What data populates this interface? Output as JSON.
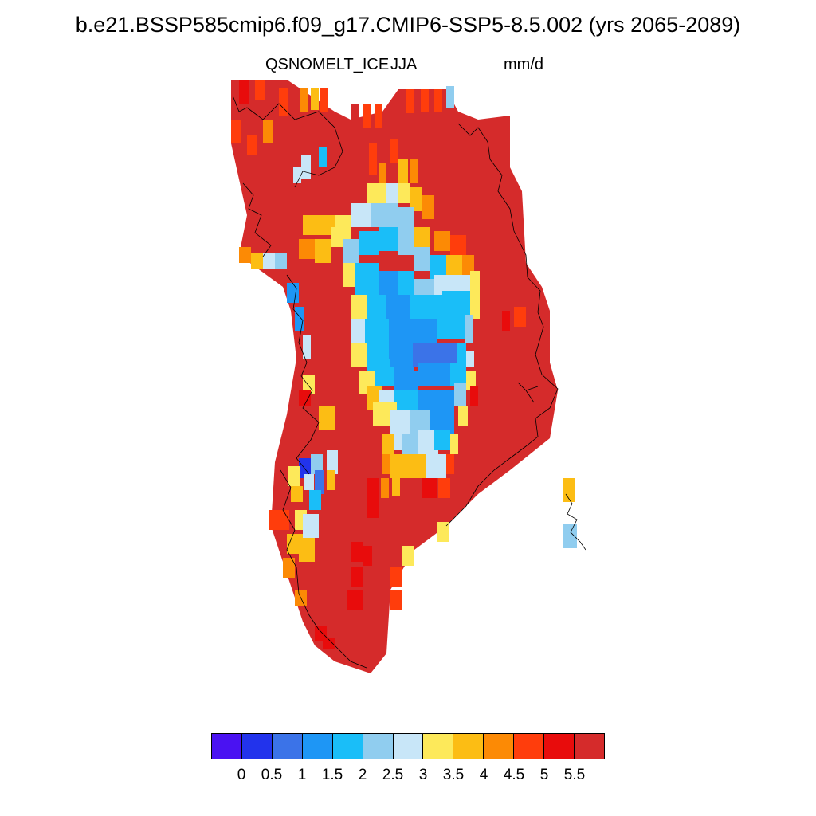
{
  "title": "b.e21.BSSP585cmip6.f09_g17.CMIP6-SSP5-8.5.002 (yrs 2065-2089)",
  "subtitle_left": "QSNOMELT_ICE",
  "subtitle_center": "JJA",
  "subtitle_right": "mm/d",
  "colors": {
    "palette": [
      "#4a12f2",
      "#2233ec",
      "#3b73e8",
      "#1e96f5",
      "#1abef8",
      "#90cdef",
      "#c8e6f8",
      "#fde95a",
      "#fcbd14",
      "#fc8a05",
      "#ff3d0c",
      "#e80c0c",
      "#d52b2b"
    ],
    "coastline": "#000000",
    "background": "#ffffff"
  },
  "colorbar": {
    "labels": [
      "0",
      "0.5",
      "1",
      "1.5",
      "2",
      "2.5",
      "3",
      "3.5",
      "4",
      "4.5",
      "5",
      "5.5"
    ]
  },
  "map": {
    "region": "Greenland",
    "variable": "QSNOMELT_ICE",
    "season": "JJA",
    "units": "mm/d"
  }
}
